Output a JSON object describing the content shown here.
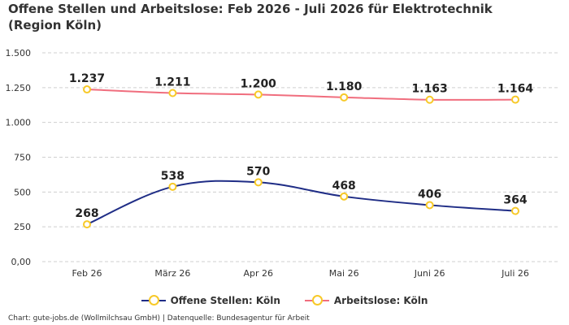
{
  "chart_data": {
    "type": "line",
    "title": "Offene Stellen und Arbeitslose: Feb 2026 - Juli 2026 für Elektrotechnik (Region Köln)",
    "categories": [
      "Feb 26",
      "März 26",
      "Apr 26",
      "Mai 26",
      "Juni 26",
      "Juli 26"
    ],
    "series": [
      {
        "name": "Offene Stellen: Köln",
        "values": [
          268,
          538,
          570,
          468,
          406,
          364
        ],
        "labels": [
          "268",
          "538",
          "570",
          "468",
          "406",
          "364"
        ],
        "color": "#1f2d86"
      },
      {
        "name": "Arbeitslose: Köln",
        "values": [
          1237,
          1211,
          1200,
          1180,
          1163,
          1164
        ],
        "labels": [
          "1.237",
          "1.211",
          "1.200",
          "1.180",
          "1.163",
          "1.164"
        ],
        "color": "#f06e7e"
      }
    ],
    "marker_color": "#f7c928",
    "ylim": [
      0,
      1500
    ],
    "yticks": [
      0,
      250,
      500,
      750,
      1000,
      1250,
      1500
    ],
    "ytick_labels": [
      "0,00",
      "250",
      "500",
      "750",
      "1.000",
      "1.250",
      "1.500"
    ],
    "grid": true,
    "legend_position": "bottom-center",
    "credits": "Chart: gute-jobs.de (Wollmilchsau GmbH) | Datenquelle: Bundesagentur für Arbeit"
  }
}
